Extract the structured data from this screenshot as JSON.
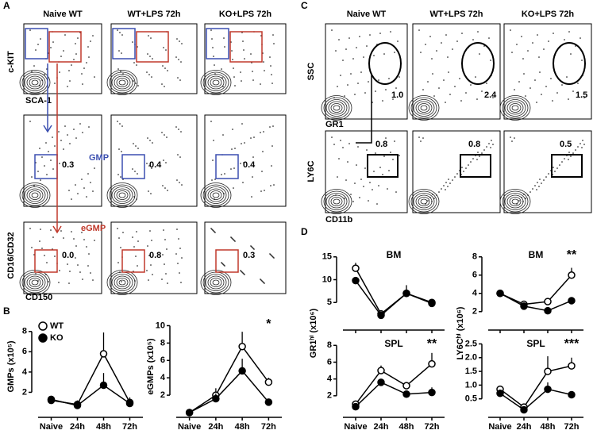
{
  "panels": {
    "A": {
      "label": "A",
      "columns": [
        "Naive WT",
        "WT+LPS 72h",
        "KO+LPS 72h"
      ],
      "y_axis_top": "c-KIT",
      "x_axis_top": "SCA-1",
      "y_axis_bottom": "CD16/CD32",
      "x_axis_bottom": "CD150",
      "gmp_label": "GMP",
      "egmp_label": "eGMP",
      "gmp_values": [
        "0.3",
        "0.4",
        "0.4"
      ],
      "egmp_values": [
        "0.0",
        "0.8",
        "0.3"
      ]
    },
    "C": {
      "label": "C",
      "columns": [
        "Naive WT",
        "WT+LPS 72h",
        "KO+LPS 72h"
      ],
      "y_axis_top": "SSC",
      "x_axis_top": "GR1",
      "y_axis_bottom": "LY6C",
      "x_axis_bottom": "CD11b",
      "gr1_values": [
        "1.0",
        "2.4",
        "1.5"
      ],
      "ly6c_values": [
        "0.8",
        "0.8",
        "0.5"
      ]
    },
    "B": {
      "label": "B"
    },
    "D": {
      "label": "D"
    }
  },
  "chart_data": [
    {
      "type": "line",
      "ylabel": "GMPs (x10⁵)",
      "categories": [
        "Naive",
        "24h",
        "48h",
        "72h"
      ],
      "ylim": [
        0,
        9
      ],
      "yticks": [
        2,
        4,
        6,
        8
      ],
      "legend": "upper left",
      "series": [
        {
          "name": "WT",
          "color": "#000000",
          "fill": "#ffffff",
          "values": [
            1.2,
            0.8,
            5.8,
            1.0
          ],
          "errors": [
            0.3,
            0.4,
            2.1,
            0.5
          ]
        },
        {
          "name": "KO",
          "color": "#000000",
          "fill": "#000000",
          "values": [
            1.3,
            0.7,
            2.7,
            0.9
          ],
          "errors": [
            0.2,
            0.3,
            1.2,
            0.3
          ]
        }
      ]
    },
    {
      "type": "line",
      "ylabel": "eGMPs (x10⁵)",
      "annotation": "*",
      "categories": [
        "Naive",
        "24h",
        "48h",
        "72h"
      ],
      "ylim": [
        0,
        10.5
      ],
      "yticks": [
        2,
        4,
        6,
        8,
        10
      ],
      "series": [
        {
          "color": "#000000",
          "fill": "#ffffff",
          "values": [
            0,
            2.0,
            7.6,
            3.5
          ],
          "errors": [
            0,
            0.8,
            1.7,
            0.5
          ]
        },
        {
          "color": "#000000",
          "fill": "#000000",
          "values": [
            0,
            1.6,
            4.8,
            1.2
          ],
          "errors": [
            0,
            0.6,
            1.4,
            0.2
          ]
        }
      ]
    },
    {
      "type": "line",
      "title": "BM",
      "ylabel": "GR1ʰⁱ (x10⁶)",
      "categories": [
        null,
        null,
        null,
        null
      ],
      "ylim": [
        0,
        16
      ],
      "yticks": [
        5,
        10,
        15
      ],
      "series": [
        {
          "color": "#000000",
          "fill": "#ffffff",
          "values": [
            12.5,
            2.5,
            7.0,
            5.0
          ],
          "errors": [
            1.2,
            0.4,
            1.8,
            0.6
          ]
        },
        {
          "color": "#000000",
          "fill": "#000000",
          "values": [
            9.8,
            2.2,
            7.0,
            4.8
          ],
          "errors": [
            0.4,
            0.3,
            0.8,
            0.5
          ]
        }
      ]
    },
    {
      "type": "line",
      "title": "BM",
      "ylabel": "LY6Cʰⁱ (x10⁶)",
      "annotation": "**",
      "categories": [
        null,
        null,
        null,
        null
      ],
      "ylim": [
        0.5,
        8.5
      ],
      "yticks": [
        2,
        4,
        6,
        8
      ],
      "series": [
        {
          "color": "#000000",
          "fill": "#ffffff",
          "values": [
            4.0,
            2.8,
            3.1,
            6.0
          ],
          "errors": [
            0.2,
            0.3,
            0.3,
            0.8
          ]
        },
        {
          "color": "#000000",
          "fill": "#000000",
          "values": [
            4.0,
            2.6,
            2.1,
            3.2
          ],
          "errors": [
            0.2,
            0.3,
            0.3,
            0.3
          ]
        }
      ]
    },
    {
      "type": "line",
      "title": "SPL",
      "annotation": "**",
      "categories": [
        "Naive",
        "24h",
        "48h",
        "72h"
      ],
      "ylim": [
        0,
        8.5
      ],
      "yticks": [
        2,
        4,
        6,
        8
      ],
      "series": [
        {
          "color": "#000000",
          "fill": "#ffffff",
          "values": [
            1.0,
            5.0,
            3.2,
            5.8
          ],
          "errors": [
            0.3,
            0.6,
            0.3,
            1.3
          ]
        },
        {
          "color": "#000000",
          "fill": "#000000",
          "values": [
            0.7,
            3.6,
            2.2,
            2.4
          ],
          "errors": [
            0.2,
            0.4,
            0.2,
            0.6
          ]
        }
      ]
    },
    {
      "type": "line",
      "title": "SPL",
      "annotation": "***",
      "categories": [
        "Naive",
        "24h",
        "48h",
        "72h"
      ],
      "ylim": [
        0,
        2.6
      ],
      "yticks": [
        {
          "value": 0.5,
          "label": "0.5"
        },
        {
          "value": 1,
          "label": "1.0"
        },
        {
          "value": 1.5,
          "label": "1.5"
        },
        {
          "value": 2,
          "label": "2.0"
        },
        {
          "value": 2.5,
          "label": "2.5"
        }
      ],
      "series": [
        {
          "color": "#000000",
          "fill": "#ffffff",
          "values": [
            0.85,
            0.2,
            1.5,
            1.7
          ],
          "errors": [
            0.1,
            0.1,
            0.55,
            0.3
          ]
        },
        {
          "color": "#000000",
          "fill": "#000000",
          "values": [
            0.7,
            0.1,
            0.85,
            0.65
          ],
          "errors": [
            0.1,
            0.05,
            0.25,
            0.05
          ]
        }
      ]
    }
  ]
}
